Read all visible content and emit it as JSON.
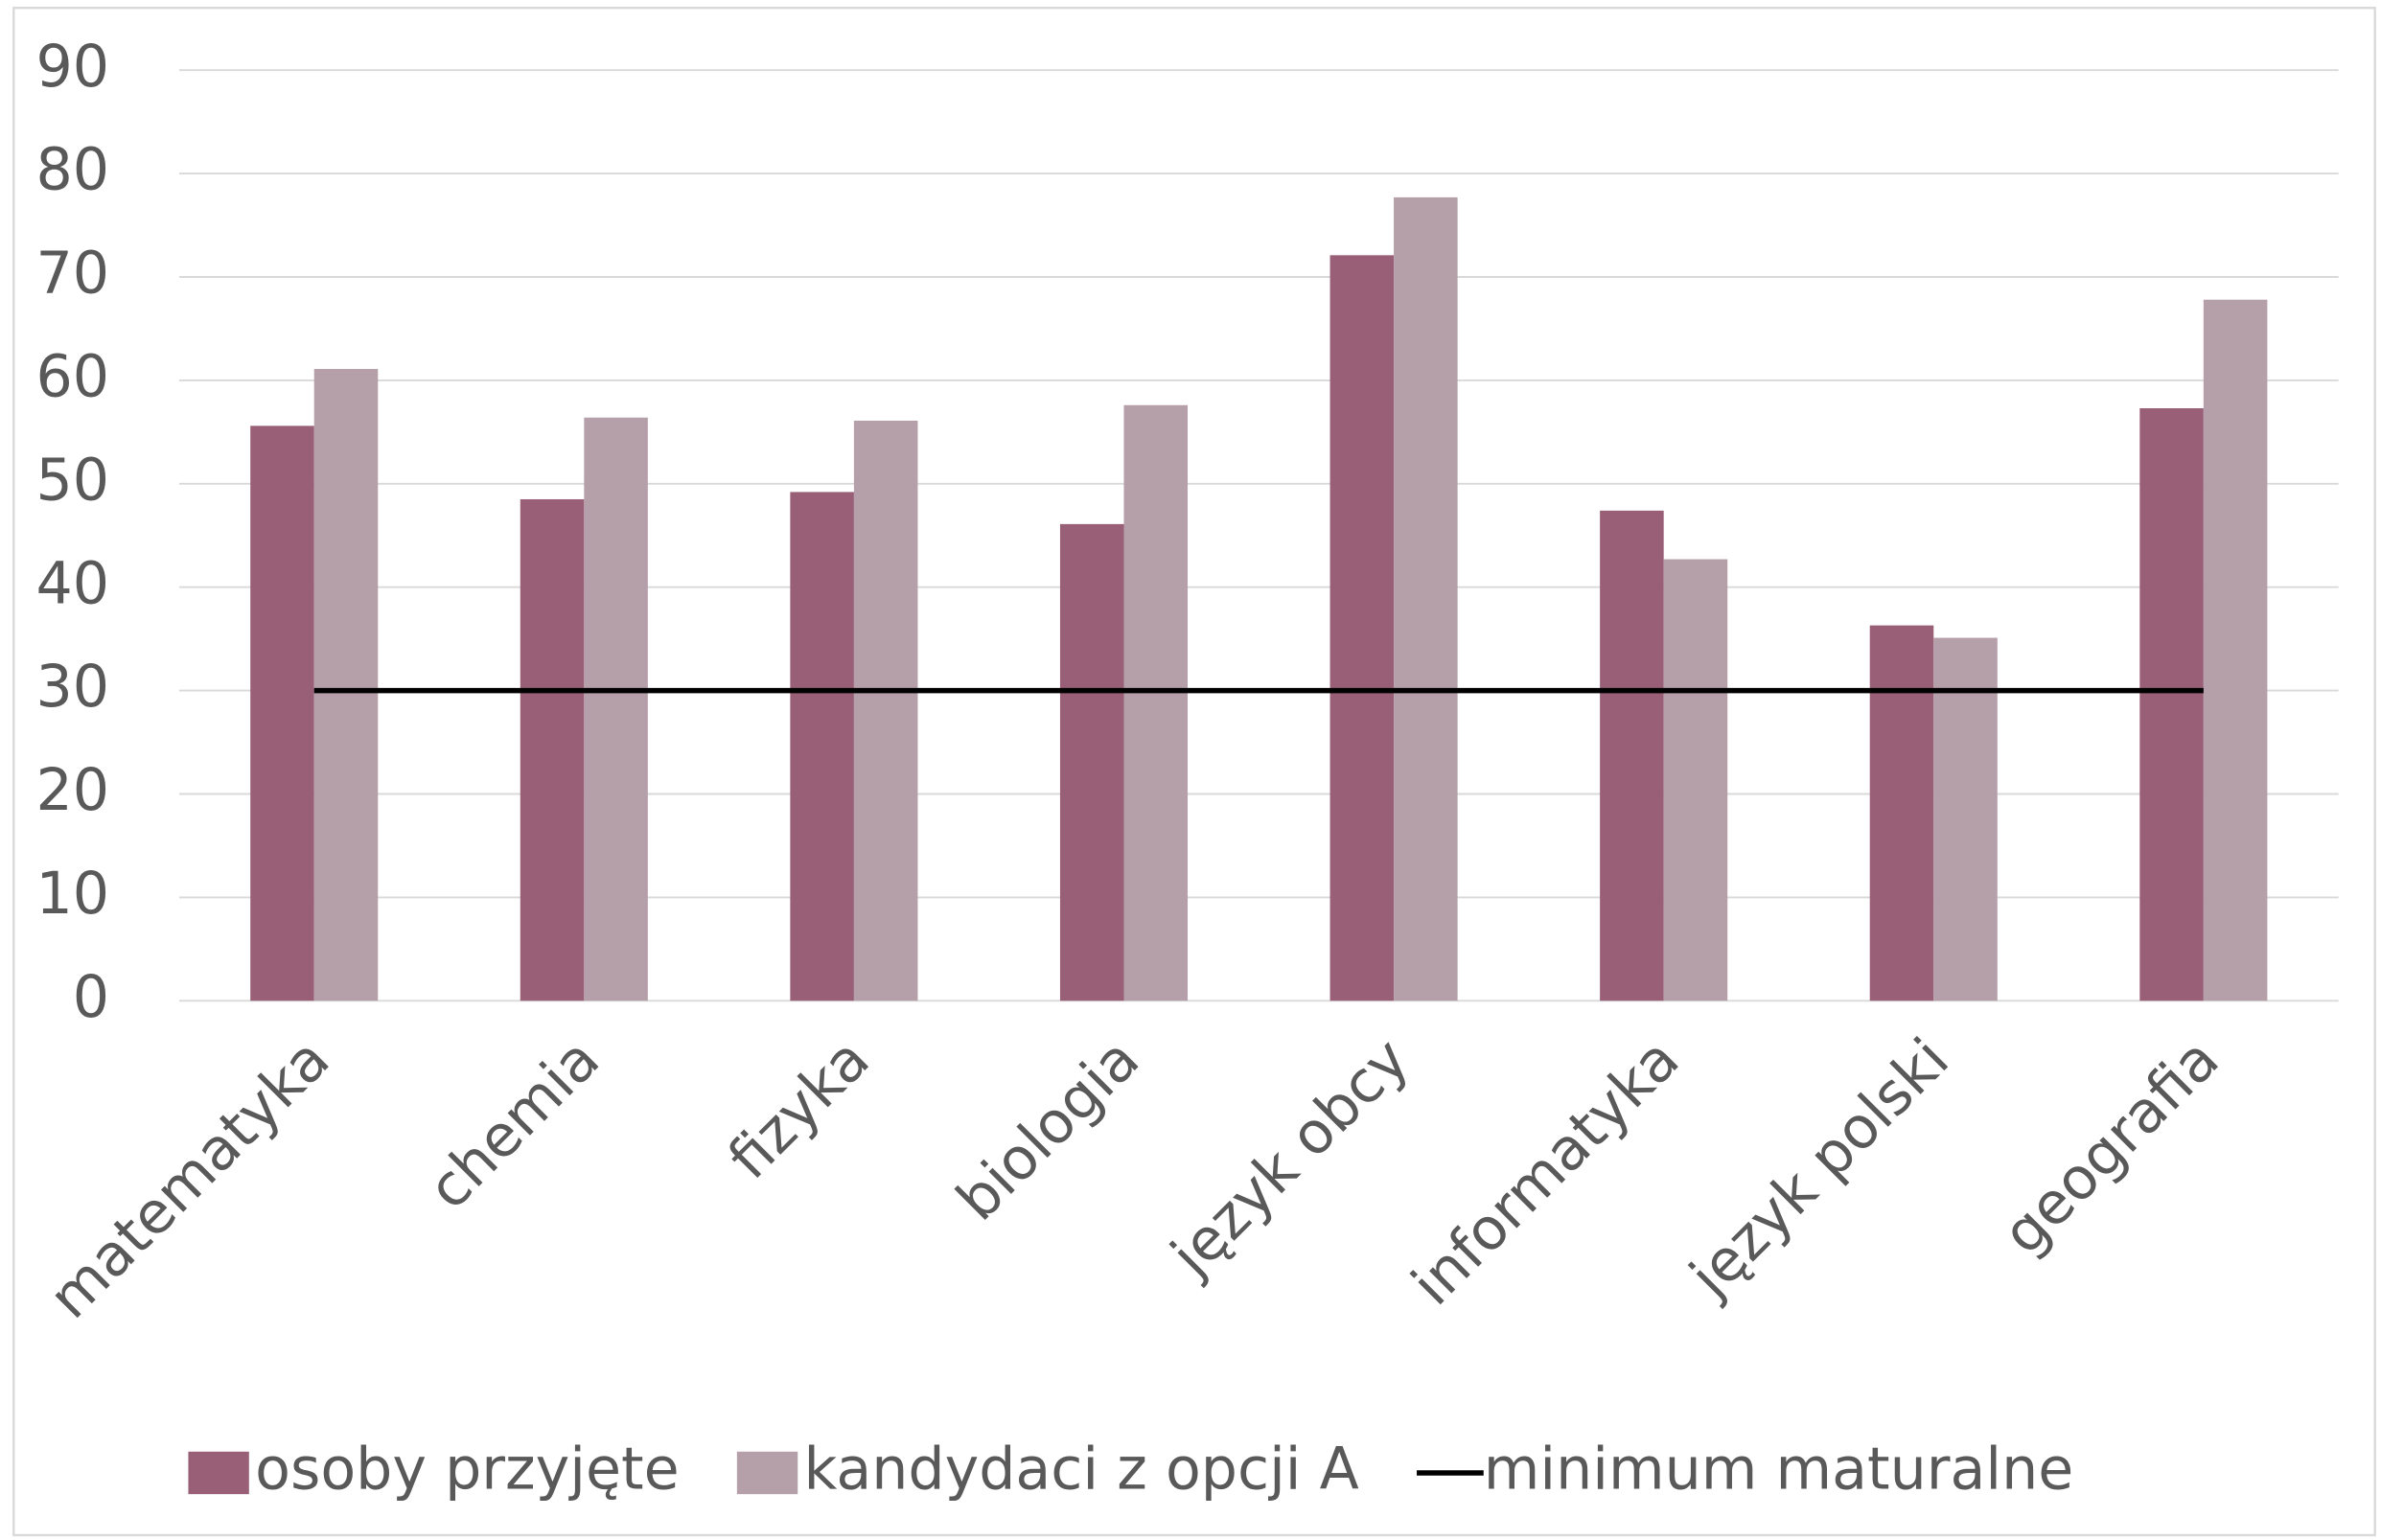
{
  "chart_data": {
    "type": "bar",
    "categories": [
      "matematyka",
      "chemia",
      "fizyka",
      "biologia",
      "język obcy",
      "informatyka",
      "język polski",
      "geografia"
    ],
    "series": [
      {
        "name": "osoby przyjęte",
        "color": "#985f76",
        "values": [
          55.6,
          48.5,
          49.2,
          46.1,
          72.1,
          47.4,
          36.3,
          57.3
        ]
      },
      {
        "name": "kandydaci z opcji A",
        "color": "#b59fa9",
        "values": [
          61.1,
          56.4,
          56.1,
          57.6,
          77.7,
          42.7,
          35.1,
          67.8
        ]
      },
      {
        "name": "minimum maturalne",
        "color": "#000000",
        "type": "line",
        "values": [
          30,
          30,
          30,
          30,
          30,
          30,
          30,
          30
        ]
      }
    ],
    "ylim": [
      0,
      90
    ],
    "yticks": [
      0,
      10,
      20,
      30,
      40,
      50,
      60,
      70,
      80,
      90
    ],
    "grid": true,
    "legend": "bottom"
  }
}
